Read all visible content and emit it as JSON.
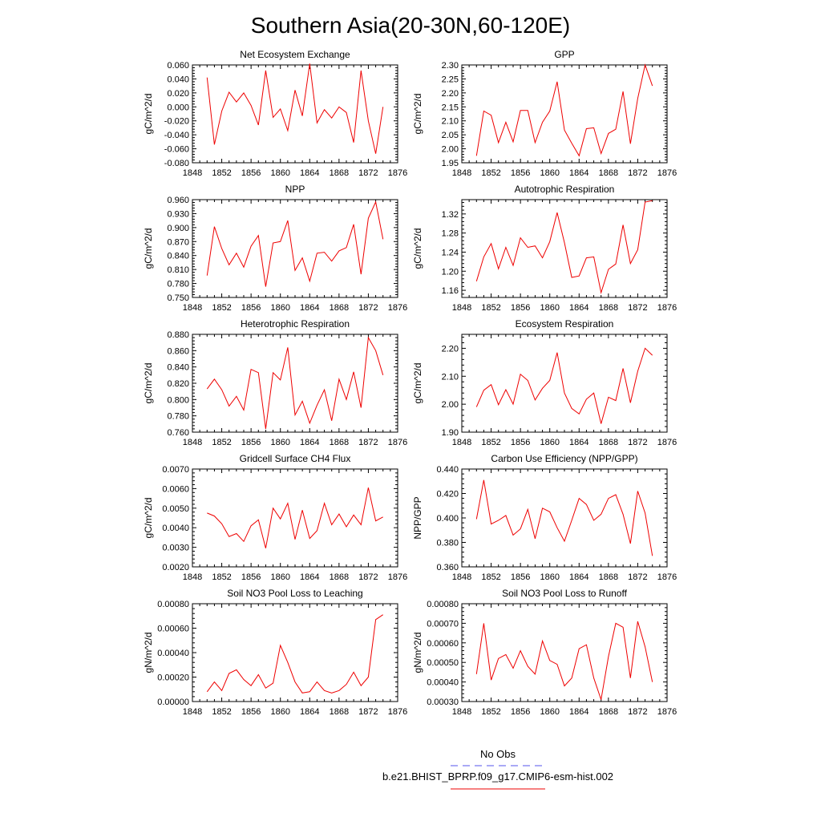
{
  "figure": {
    "title": "Southern Asia(20-30N,60-120E)",
    "legend": [
      {
        "label": "No Obs",
        "color": "#5555ee",
        "style": "dashed"
      },
      {
        "label": "b.e21.BHIST_BPRP.f09_g17.CMIP6-esm-hist.002",
        "color": "#ee0000",
        "style": "solid"
      }
    ]
  },
  "chart_data": [
    {
      "type": "line",
      "title": "Net Ecosystem Exchange",
      "ylabel": "gC/m^2/d",
      "xlim": [
        1848,
        1876
      ],
      "xticks": [
        1848,
        1852,
        1856,
        1860,
        1864,
        1868,
        1872,
        1876
      ],
      "xtick_labels": [
        "1848",
        "1852",
        "1856",
        "1860",
        "1864",
        "1868",
        "1872",
        "1876"
      ],
      "ylim": [
        -0.08,
        0.06
      ],
      "yticks": [
        -0.08,
        -0.06,
        -0.04,
        -0.02,
        0.0,
        0.02,
        0.04,
        0.06
      ],
      "ytick_labels": [
        "-0.080",
        "-0.060",
        "-0.040",
        "-0.020",
        "0.000",
        "0.020",
        "0.040",
        "0.060"
      ],
      "series": [
        {
          "x": [
            1850,
            1851,
            1852,
            1853,
            1854,
            1855,
            1856,
            1857,
            1858,
            1859,
            1860,
            1861,
            1862,
            1863,
            1864,
            1865,
            1866,
            1867,
            1868,
            1869,
            1870,
            1871,
            1872,
            1873,
            1874
          ],
          "values": [
            0.042,
            -0.054,
            -0.006,
            0.021,
            0.007,
            0.02,
            0.002,
            -0.026,
            0.052,
            -0.015,
            -0.003,
            -0.034,
            0.024,
            -0.013,
            0.062,
            -0.023,
            -0.004,
            -0.016,
            0.0,
            -0.008,
            -0.051,
            0.052,
            -0.02,
            -0.067,
            0.0
          ]
        }
      ]
    },
    {
      "type": "line",
      "title": "GPP",
      "ylabel": "gC/m^2/d",
      "xlim": [
        1848,
        1876
      ],
      "xticks": [
        1848,
        1852,
        1856,
        1860,
        1864,
        1868,
        1872,
        1876
      ],
      "xtick_labels": [
        "1848",
        "1852",
        "1856",
        "1860",
        "1864",
        "1868",
        "1872",
        "1876"
      ],
      "ylim": [
        1.95,
        2.3
      ],
      "yticks": [
        1.95,
        2.0,
        2.05,
        2.1,
        2.15,
        2.2,
        2.25,
        2.3
      ],
      "ytick_labels": [
        "1.95",
        "2.00",
        "2.05",
        "2.10",
        "2.15",
        "2.20",
        "2.25",
        "2.30"
      ],
      "series": [
        {
          "x": [
            1850,
            1851,
            1852,
            1853,
            1854,
            1855,
            1856,
            1857,
            1858,
            1859,
            1860,
            1861,
            1862,
            1863,
            1864,
            1865,
            1866,
            1867,
            1868,
            1869,
            1870,
            1871,
            1872,
            1873,
            1874
          ],
          "values": [
            1.975,
            2.135,
            2.12,
            2.022,
            2.095,
            2.025,
            2.137,
            2.137,
            2.022,
            2.095,
            2.135,
            2.24,
            2.067,
            2.02,
            1.975,
            2.072,
            2.075,
            1.983,
            2.055,
            2.07,
            2.205,
            2.018,
            2.18,
            2.3,
            2.225
          ]
        }
      ]
    },
    {
      "type": "line",
      "title": "NPP",
      "ylabel": "gC/m^2/d",
      "xlim": [
        1848,
        1876
      ],
      "xticks": [
        1848,
        1852,
        1856,
        1860,
        1864,
        1868,
        1872,
        1876
      ],
      "xtick_labels": [
        "1848",
        "1852",
        "1856",
        "1860",
        "1864",
        "1868",
        "1872",
        "1876"
      ],
      "ylim": [
        0.75,
        0.96
      ],
      "yticks": [
        0.75,
        0.78,
        0.81,
        0.84,
        0.87,
        0.9,
        0.93,
        0.96
      ],
      "ytick_labels": [
        "0.750",
        "0.780",
        "0.810",
        "0.840",
        "0.870",
        "0.900",
        "0.930",
        "0.960"
      ],
      "series": [
        {
          "x": [
            1850,
            1851,
            1852,
            1853,
            1854,
            1855,
            1856,
            1857,
            1858,
            1859,
            1860,
            1861,
            1862,
            1863,
            1864,
            1865,
            1866,
            1867,
            1868,
            1869,
            1870,
            1871,
            1872,
            1873,
            1874
          ],
          "values": [
            0.797,
            0.902,
            0.855,
            0.82,
            0.845,
            0.815,
            0.86,
            0.883,
            0.773,
            0.867,
            0.87,
            0.915,
            0.808,
            0.835,
            0.785,
            0.845,
            0.847,
            0.828,
            0.85,
            0.857,
            0.907,
            0.8,
            0.92,
            0.955,
            0.875
          ]
        }
      ]
    },
    {
      "type": "line",
      "title": "Autotrophic Respiration",
      "ylabel": "gC/m^2/d",
      "xlim": [
        1848,
        1876
      ],
      "xticks": [
        1848,
        1852,
        1856,
        1860,
        1864,
        1868,
        1872,
        1876
      ],
      "xtick_labels": [
        "1848",
        "1852",
        "1856",
        "1860",
        "1864",
        "1868",
        "1872",
        "1876"
      ],
      "ylim": [
        1.145,
        1.35
      ],
      "yticks": [
        1.16,
        1.2,
        1.24,
        1.28,
        1.32
      ],
      "ytick_labels": [
        "1.16",
        "1.20",
        "1.24",
        "1.28",
        "1.32"
      ],
      "series": [
        {
          "x": [
            1850,
            1851,
            1852,
            1853,
            1854,
            1855,
            1856,
            1857,
            1858,
            1859,
            1860,
            1861,
            1862,
            1863,
            1864,
            1865,
            1866,
            1867,
            1868,
            1869,
            1870,
            1871,
            1872,
            1873,
            1874
          ],
          "values": [
            1.179,
            1.23,
            1.258,
            1.205,
            1.25,
            1.212,
            1.27,
            1.25,
            1.253,
            1.228,
            1.262,
            1.323,
            1.26,
            1.187,
            1.19,
            1.228,
            1.23,
            1.155,
            1.204,
            1.215,
            1.297,
            1.216,
            1.245,
            1.345,
            1.348
          ]
        }
      ]
    },
    {
      "type": "line",
      "title": "Heterotrophic Respiration",
      "ylabel": "gC/m^2/d",
      "xlim": [
        1848,
        1876
      ],
      "xticks": [
        1848,
        1852,
        1856,
        1860,
        1864,
        1868,
        1872,
        1876
      ],
      "xtick_labels": [
        "1848",
        "1852",
        "1856",
        "1860",
        "1864",
        "1868",
        "1872",
        "1876"
      ],
      "ylim": [
        0.76,
        0.88
      ],
      "yticks": [
        0.76,
        0.78,
        0.8,
        0.82,
        0.84,
        0.86,
        0.88
      ],
      "ytick_labels": [
        "0.760",
        "0.780",
        "0.800",
        "0.820",
        "0.840",
        "0.860",
        "0.880"
      ],
      "series": [
        {
          "x": [
            1850,
            1851,
            1852,
            1853,
            1854,
            1855,
            1856,
            1857,
            1858,
            1859,
            1860,
            1861,
            1862,
            1863,
            1864,
            1865,
            1866,
            1867,
            1868,
            1869,
            1870,
            1871,
            1872,
            1873,
            1874
          ],
          "values": [
            0.813,
            0.825,
            0.812,
            0.792,
            0.804,
            0.787,
            0.837,
            0.833,
            0.764,
            0.833,
            0.824,
            0.864,
            0.781,
            0.798,
            0.771,
            0.793,
            0.812,
            0.774,
            0.825,
            0.8,
            0.834,
            0.79,
            0.876,
            0.86,
            0.83
          ]
        }
      ]
    },
    {
      "type": "line",
      "title": "Ecosystem Respiration",
      "ylabel": "gC/m^2/d",
      "xlim": [
        1848,
        1876
      ],
      "xticks": [
        1848,
        1852,
        1856,
        1860,
        1864,
        1868,
        1872,
        1876
      ],
      "xtick_labels": [
        "1848",
        "1852",
        "1856",
        "1860",
        "1864",
        "1868",
        "1872",
        "1876"
      ],
      "ylim": [
        1.9,
        2.25
      ],
      "yticks": [
        1.9,
        2.0,
        2.1,
        2.2
      ],
      "ytick_labels": [
        "1.90",
        "2.00",
        "2.10",
        "2.20"
      ],
      "series": [
        {
          "x": [
            1850,
            1851,
            1852,
            1853,
            1854,
            1855,
            1856,
            1857,
            1858,
            1859,
            1860,
            1861,
            1862,
            1863,
            1864,
            1865,
            1866,
            1867,
            1868,
            1869,
            1870,
            1871,
            1872,
            1873,
            1874
          ],
          "values": [
            1.99,
            2.05,
            2.07,
            1.998,
            2.052,
            2.0,
            2.107,
            2.085,
            2.015,
            2.057,
            2.085,
            2.185,
            2.04,
            1.985,
            1.965,
            2.018,
            2.04,
            1.93,
            2.025,
            2.013,
            2.128,
            2.005,
            2.118,
            2.2,
            2.175
          ]
        }
      ]
    },
    {
      "type": "line",
      "title": "Gridcell Surface CH4 Flux",
      "ylabel": "gC/m^2/d",
      "xlim": [
        1848,
        1876
      ],
      "xticks": [
        1848,
        1852,
        1856,
        1860,
        1864,
        1868,
        1872,
        1876
      ],
      "xtick_labels": [
        "1848",
        "1852",
        "1856",
        "1860",
        "1864",
        "1868",
        "1872",
        "1876"
      ],
      "ylim": [
        0.002,
        0.007
      ],
      "yticks": [
        0.002,
        0.003,
        0.004,
        0.005,
        0.006,
        0.007
      ],
      "ytick_labels": [
        "0.0020",
        "0.0030",
        "0.0040",
        "0.0050",
        "0.0060",
        "0.0070"
      ],
      "series": [
        {
          "x": [
            1850,
            1851,
            1852,
            1853,
            1854,
            1855,
            1856,
            1857,
            1858,
            1859,
            1860,
            1861,
            1862,
            1863,
            1864,
            1865,
            1866,
            1867,
            1868,
            1869,
            1870,
            1871,
            1872,
            1873,
            1874
          ],
          "values": [
            0.00475,
            0.0046,
            0.0042,
            0.00355,
            0.0037,
            0.0033,
            0.0041,
            0.0044,
            0.00295,
            0.005,
            0.00445,
            0.00525,
            0.0034,
            0.0049,
            0.00345,
            0.00385,
            0.00525,
            0.00415,
            0.0047,
            0.00405,
            0.00465,
            0.00415,
            0.00605,
            0.00435,
            0.00455
          ]
        }
      ]
    },
    {
      "type": "line",
      "title": "Carbon Use Efficiency (NPP/GPP)",
      "ylabel": "NPP/GPP",
      "xlim": [
        1848,
        1876
      ],
      "xticks": [
        1848,
        1852,
        1856,
        1860,
        1864,
        1868,
        1872,
        1876
      ],
      "xtick_labels": [
        "1848",
        "1852",
        "1856",
        "1860",
        "1864",
        "1868",
        "1872",
        "1876"
      ],
      "ylim": [
        0.36,
        0.44
      ],
      "yticks": [
        0.36,
        0.38,
        0.4,
        0.42,
        0.44
      ],
      "ytick_labels": [
        "0.360",
        "0.380",
        "0.400",
        "0.420",
        "0.440"
      ],
      "series": [
        {
          "x": [
            1850,
            1851,
            1852,
            1853,
            1854,
            1855,
            1856,
            1857,
            1858,
            1859,
            1860,
            1861,
            1862,
            1863,
            1864,
            1865,
            1866,
            1867,
            1868,
            1869,
            1870,
            1871,
            1872,
            1873,
            1874
          ],
          "values": [
            0.399,
            0.431,
            0.395,
            0.398,
            0.402,
            0.386,
            0.391,
            0.407,
            0.383,
            0.408,
            0.405,
            0.392,
            0.381,
            0.398,
            0.416,
            0.411,
            0.398,
            0.403,
            0.416,
            0.419,
            0.403,
            0.379,
            0.422,
            0.404,
            0.369
          ]
        }
      ]
    },
    {
      "type": "line",
      "title": "Soil NO3 Pool Loss to Leaching",
      "ylabel": "gN/m^2/d",
      "xlim": [
        1848,
        1876
      ],
      "xticks": [
        1848,
        1852,
        1856,
        1860,
        1864,
        1868,
        1872,
        1876
      ],
      "xtick_labels": [
        "1848",
        "1852",
        "1856",
        "1860",
        "1864",
        "1868",
        "1872",
        "1876"
      ],
      "ylim": [
        0.0,
        0.0008
      ],
      "yticks": [
        0.0,
        0.0002,
        0.0004,
        0.0006,
        0.0008
      ],
      "ytick_labels": [
        "0.00000",
        "0.00020",
        "0.00040",
        "0.00060",
        "0.00080"
      ],
      "series": [
        {
          "x": [
            1850,
            1851,
            1852,
            1853,
            1854,
            1855,
            1856,
            1857,
            1858,
            1859,
            1860,
            1861,
            1862,
            1863,
            1864,
            1865,
            1866,
            1867,
            1868,
            1869,
            1870,
            1871,
            1872,
            1873,
            1874
          ],
          "values": [
            8e-05,
            0.00016,
            9e-05,
            0.00023,
            0.00026,
            0.00018,
            0.00013,
            0.00022,
            0.00011,
            0.00015,
            0.00046,
            0.00032,
            0.00016,
            7e-05,
            8e-05,
            0.00016,
            9e-05,
            7e-05,
            9e-05,
            0.00014,
            0.00024,
            0.00013,
            0.0002,
            0.00067,
            0.00071
          ]
        }
      ]
    },
    {
      "type": "line",
      "title": "Soil NO3 Pool Loss to Runoff",
      "ylabel": "gN/m^2/d",
      "xlim": [
        1848,
        1876
      ],
      "xticks": [
        1848,
        1852,
        1856,
        1860,
        1864,
        1868,
        1872,
        1876
      ],
      "xtick_labels": [
        "1848",
        "1852",
        "1856",
        "1860",
        "1864",
        "1868",
        "1872",
        "1876"
      ],
      "ylim": [
        0.0003,
        0.0008
      ],
      "yticks": [
        0.0003,
        0.0004,
        0.0005,
        0.0006,
        0.0007,
        0.0008
      ],
      "ytick_labels": [
        "0.00030",
        "0.00040",
        "0.00050",
        "0.00060",
        "0.00070",
        "0.00080"
      ],
      "series": [
        {
          "x": [
            1850,
            1851,
            1852,
            1853,
            1854,
            1855,
            1856,
            1857,
            1858,
            1859,
            1860,
            1861,
            1862,
            1863,
            1864,
            1865,
            1866,
            1867,
            1868,
            1869,
            1870,
            1871,
            1872,
            1873,
            1874
          ],
          "values": [
            0.00044,
            0.0007,
            0.00041,
            0.00052,
            0.00054,
            0.00047,
            0.00056,
            0.00048,
            0.00044,
            0.00061,
            0.00051,
            0.00049,
            0.00038,
            0.00042,
            0.00057,
            0.00059,
            0.00042,
            0.00031,
            0.00053,
            0.0007,
            0.00068,
            0.00042,
            0.00071,
            0.00058,
            0.0004
          ]
        }
      ]
    }
  ]
}
